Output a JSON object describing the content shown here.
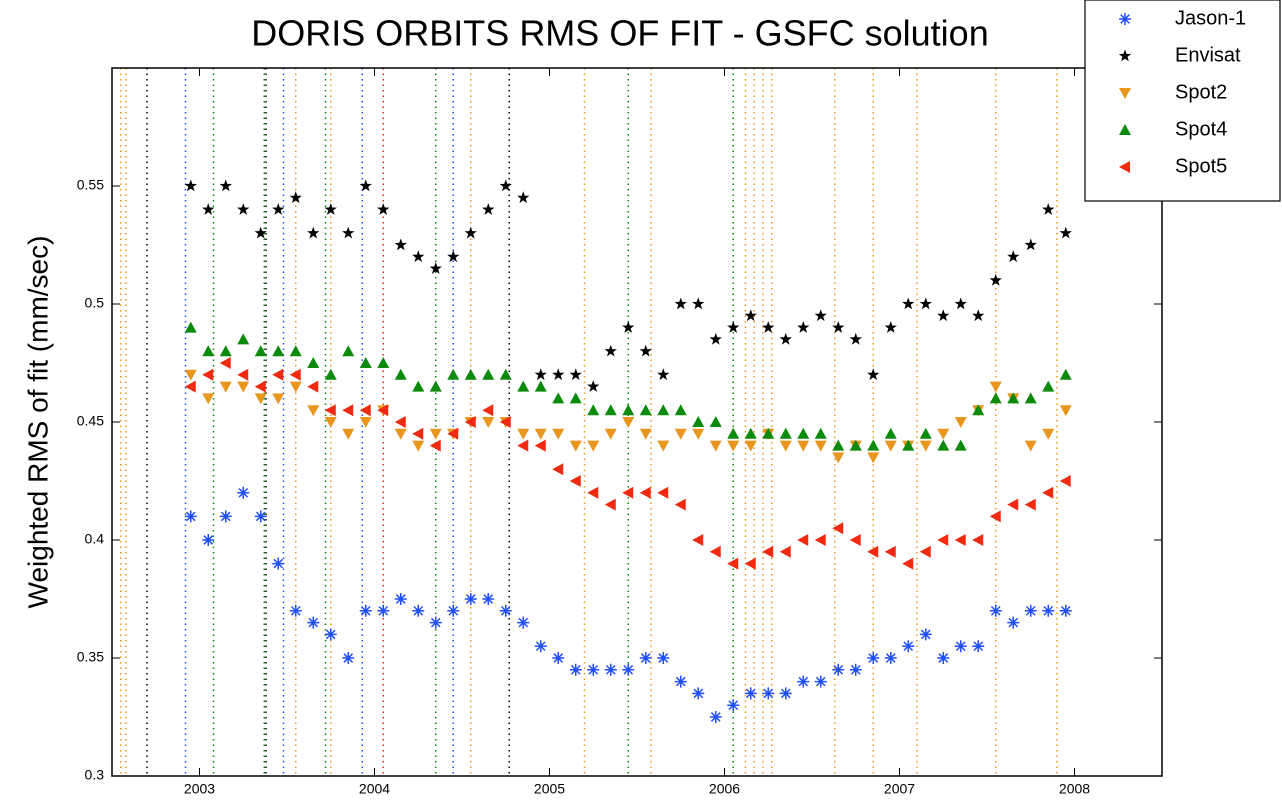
{
  "chart_data": {
    "type": "scatter",
    "title": "DORIS ORBITS RMS OF FIT - GSFC solution",
    "ylabel": "Weighted RMS of fit (mm/sec)",
    "xlim": [
      2002.5,
      2008.5
    ],
    "xticks": [
      2003,
      2004,
      2005,
      2006,
      2007,
      2008
    ],
    "ylim": [
      0.3,
      0.6
    ],
    "yticks": [
      0.3,
      0.35,
      0.4,
      0.45,
      0.5,
      0.55
    ],
    "legend": "top-right",
    "x": [
      2002.95,
      2003.05,
      2003.15,
      2003.25,
      2003.35,
      2003.45,
      2003.55,
      2003.65,
      2003.75,
      2003.85,
      2003.95,
      2004.05,
      2004.15,
      2004.25,
      2004.35,
      2004.45,
      2004.55,
      2004.65,
      2004.75,
      2004.85,
      2004.95,
      2005.05,
      2005.15,
      2005.25,
      2005.35,
      2005.45,
      2005.55,
      2005.65,
      2005.75,
      2005.85,
      2005.95,
      2006.05,
      2006.15,
      2006.25,
      2006.35,
      2006.45,
      2006.55,
      2006.65,
      2006.75,
      2006.85,
      2006.95,
      2007.05,
      2007.15,
      2007.25,
      2007.35,
      2007.45,
      2007.55,
      2007.65,
      2007.75,
      2007.85,
      2007.95
    ],
    "series": [
      {
        "name": "Jason-1",
        "color": "#1f4fff",
        "marker": "asterisk",
        "values": [
          0.41,
          0.4,
          0.41,
          0.42,
          0.41,
          0.39,
          0.37,
          0.365,
          0.36,
          0.35,
          0.37,
          0.37,
          0.375,
          0.37,
          0.365,
          0.37,
          0.375,
          0.375,
          0.37,
          0.365,
          0.355,
          0.35,
          0.345,
          0.345,
          0.345,
          0.345,
          0.35,
          0.35,
          0.34,
          0.335,
          0.325,
          0.33,
          0.335,
          0.335,
          0.335,
          0.34,
          0.34,
          0.345,
          0.345,
          0.35,
          0.35,
          0.355,
          0.36,
          0.35,
          0.355,
          0.355,
          0.37,
          0.365,
          0.37,
          0.37,
          0.37
        ]
      },
      {
        "name": "Envisat",
        "color": "#000000",
        "marker": "star",
        "values": [
          0.55,
          0.54,
          0.55,
          0.54,
          0.53,
          0.54,
          0.545,
          0.53,
          0.54,
          0.53,
          0.55,
          0.54,
          0.525,
          0.52,
          0.515,
          0.52,
          0.53,
          0.54,
          0.55,
          0.545,
          0.47,
          0.47,
          0.47,
          0.465,
          0.48,
          0.49,
          0.48,
          0.47,
          0.5,
          0.5,
          0.485,
          0.49,
          0.495,
          0.49,
          0.485,
          0.49,
          0.495,
          0.49,
          0.485,
          0.47,
          0.49,
          0.5,
          0.5,
          0.495,
          0.5,
          0.495,
          0.51,
          0.52,
          0.525,
          0.54,
          0.53
        ]
      },
      {
        "name": "Spot2",
        "color": "#e8961e",
        "marker": "triangle-down",
        "values": [
          0.47,
          0.46,
          0.465,
          0.465,
          0.46,
          0.46,
          0.465,
          0.455,
          0.45,
          0.445,
          0.45,
          0.455,
          0.445,
          0.44,
          0.445,
          0.445,
          0.45,
          0.45,
          0.45,
          0.445,
          0.445,
          0.445,
          0.44,
          0.44,
          0.445,
          0.45,
          0.445,
          0.44,
          0.445,
          0.445,
          0.44,
          0.44,
          0.44,
          0.445,
          0.44,
          0.44,
          0.44,
          0.435,
          0.44,
          0.435,
          0.44,
          0.44,
          0.44,
          0.445,
          0.45,
          0.455,
          0.465,
          0.46,
          0.44,
          0.445,
          0.455
        ]
      },
      {
        "name": "Spot4",
        "color": "#0b8a0b",
        "marker": "triangle-up",
        "values": [
          0.49,
          0.48,
          0.48,
          0.485,
          0.48,
          0.48,
          0.48,
          0.475,
          0.47,
          0.48,
          0.475,
          0.475,
          0.47,
          0.465,
          0.465,
          0.47,
          0.47,
          0.47,
          0.47,
          0.465,
          0.465,
          0.46,
          0.46,
          0.455,
          0.455,
          0.455,
          0.455,
          0.455,
          0.455,
          0.45,
          0.45,
          0.445,
          0.445,
          0.445,
          0.445,
          0.445,
          0.445,
          0.44,
          0.44,
          0.44,
          0.445,
          0.44,
          0.445,
          0.44,
          0.44,
          0.455,
          0.46,
          0.46,
          0.46,
          0.465,
          0.47
        ]
      },
      {
        "name": "Spot5",
        "color": "#f02a10",
        "marker": "triangle-left",
        "values": [
          0.465,
          0.47,
          0.475,
          0.47,
          0.465,
          0.47,
          0.47,
          0.465,
          0.455,
          0.455,
          0.455,
          0.455,
          0.45,
          0.445,
          0.44,
          0.445,
          0.45,
          0.455,
          0.45,
          0.44,
          0.44,
          0.43,
          0.425,
          0.42,
          0.415,
          0.42,
          0.42,
          0.42,
          0.415,
          0.4,
          0.395,
          0.39,
          0.39,
          0.395,
          0.395,
          0.4,
          0.4,
          0.405,
          0.4,
          0.395,
          0.395,
          0.39,
          0.395,
          0.4,
          0.4,
          0.4,
          0.41,
          0.415,
          0.415,
          0.42,
          0.425
        ]
      }
    ],
    "event_lines": [
      {
        "x": 2002.55,
        "color": "#e8961e"
      },
      {
        "x": 2002.58,
        "color": "#e8961e"
      },
      {
        "x": 2002.7,
        "color": "#000000"
      },
      {
        "x": 2002.92,
        "color": "#1f4fff"
      },
      {
        "x": 2003.08,
        "color": "#0b8a0b"
      },
      {
        "x": 2003.37,
        "color": "#0b8a0b"
      },
      {
        "x": 2003.38,
        "color": "#000000"
      },
      {
        "x": 2003.48,
        "color": "#1f4fff"
      },
      {
        "x": 2003.55,
        "color": "#e8961e"
      },
      {
        "x": 2003.72,
        "color": "#0b8a0b"
      },
      {
        "x": 2003.75,
        "color": "#e8961e"
      },
      {
        "x": 2003.93,
        "color": "#1f4fff"
      },
      {
        "x": 2004.05,
        "color": "#f02a10"
      },
      {
        "x": 2004.35,
        "color": "#0b8a0b"
      },
      {
        "x": 2004.45,
        "color": "#1f4fff"
      },
      {
        "x": 2004.55,
        "color": "#e8961e"
      },
      {
        "x": 2004.77,
        "color": "#000000"
      },
      {
        "x": 2005.2,
        "color": "#e8961e"
      },
      {
        "x": 2005.45,
        "color": "#0b8a0b"
      },
      {
        "x": 2005.58,
        "color": "#e8961e"
      },
      {
        "x": 2006.05,
        "color": "#0b8a0b"
      },
      {
        "x": 2006.12,
        "color": "#e8961e"
      },
      {
        "x": 2006.17,
        "color": "#e8961e"
      },
      {
        "x": 2006.22,
        "color": "#e8961e"
      },
      {
        "x": 2006.27,
        "color": "#e8961e"
      },
      {
        "x": 2006.63,
        "color": "#e8961e"
      },
      {
        "x": 2006.85,
        "color": "#e8961e"
      },
      {
        "x": 2007.1,
        "color": "#e8961e"
      },
      {
        "x": 2007.55,
        "color": "#e8961e"
      },
      {
        "x": 2007.9,
        "color": "#e8961e"
      }
    ]
  }
}
